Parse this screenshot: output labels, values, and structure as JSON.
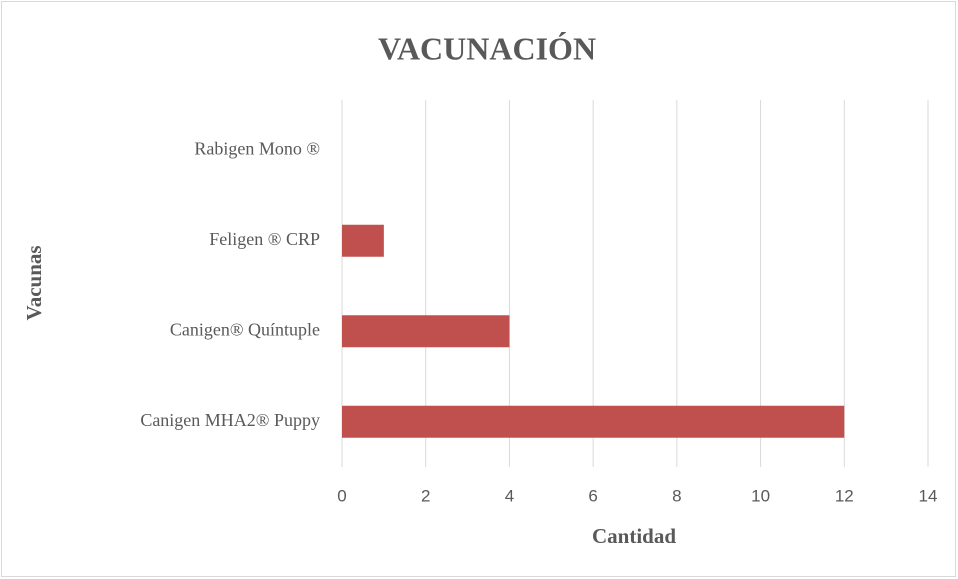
{
  "chart_data": {
    "type": "hbar",
    "title": "VACUNACIÓN",
    "x_label": "Cantidad",
    "y_label": "Vacunas",
    "categories": [
      "Rabigen Mono ®",
      "Feligen ® CRP",
      "Canigen® Quíntuple",
      "Canigen MHA2® Puppy"
    ],
    "values": [
      0,
      1,
      4,
      12
    ],
    "color": "#c0504d",
    "xlim": [
      0,
      14
    ],
    "xticks": [
      0,
      2,
      4,
      6,
      8,
      10,
      12,
      14
    ],
    "grid": true
  }
}
